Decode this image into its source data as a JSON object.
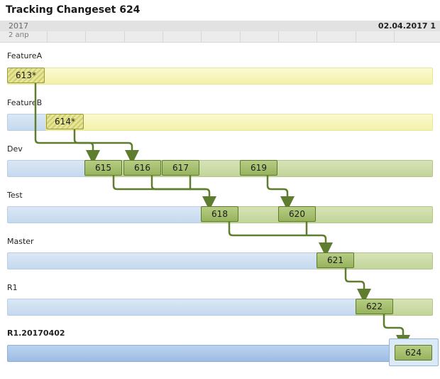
{
  "title": "Tracking Changeset 624",
  "timeline": {
    "year": "2017",
    "day": "2 апр",
    "date": "02.04.2017 1"
  },
  "branches": [
    {
      "name": "FeatureA"
    },
    {
      "name": "FeatureB"
    },
    {
      "name": "Dev"
    },
    {
      "name": "Test"
    },
    {
      "name": "Master"
    },
    {
      "name": "R1"
    },
    {
      "name": "R1.20170402"
    }
  ],
  "changesets": {
    "cs613": "613*",
    "cs614": "614*",
    "cs615": "615",
    "cs616": "616",
    "cs617": "617",
    "cs619": "619",
    "cs618": "618",
    "cs620": "620",
    "cs621": "621",
    "cs622": "622",
    "cs624": "624"
  },
  "colors": {
    "arrow": "#5e7d2f",
    "changeset_fill": "#a8c270",
    "pending_fill": "#e2e190",
    "lane_blue": "#cfdff1",
    "lane_yellow": "#f7f6bd",
    "lane_green": "#c9d9a5"
  }
}
